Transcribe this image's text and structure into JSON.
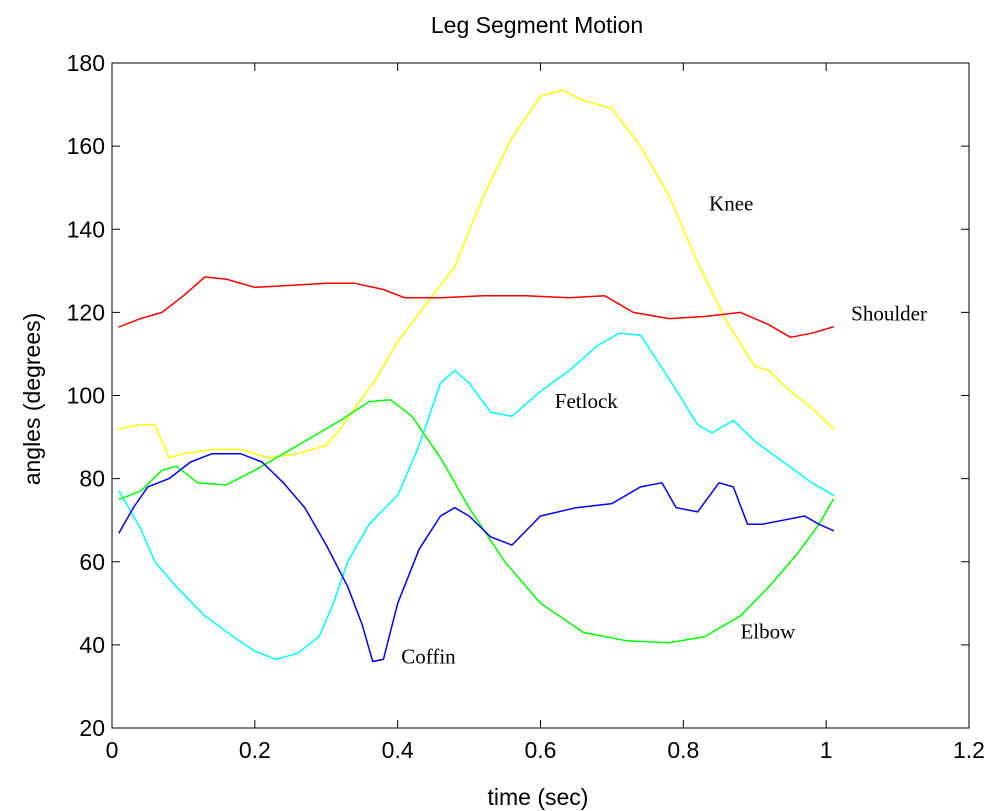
{
  "chart_data": {
    "type": "line",
    "title": "Leg Segment Motion",
    "xlabel": "time (sec)",
    "ylabel": "angles (degrees)",
    "xlim": [
      0,
      1.2
    ],
    "ylim": [
      20,
      180
    ],
    "xticks": [
      0,
      0.2,
      0.4,
      0.6,
      0.8,
      1,
      1.2
    ],
    "xtick_labels": [
      "0",
      "0.2",
      "0.4",
      "0.6",
      "0.8",
      "1",
      "1.2"
    ],
    "yticks": [
      20,
      40,
      60,
      80,
      100,
      120,
      140,
      160,
      180
    ],
    "ytick_labels": [
      "20",
      "40",
      "60",
      "80",
      "100",
      "120",
      "140",
      "160",
      "180"
    ],
    "grid": false,
    "legend": "none",
    "series": [
      {
        "name": "Knee",
        "color": "#ffff00",
        "x": [
          0.01,
          0.04,
          0.06,
          0.08,
          0.1,
          0.14,
          0.18,
          0.22,
          0.26,
          0.3,
          0.32,
          0.34,
          0.37,
          0.4,
          0.44,
          0.48,
          0.52,
          0.56,
          0.6,
          0.63,
          0.66,
          0.7,
          0.74,
          0.78,
          0.82,
          0.86,
          0.9,
          0.92,
          0.95,
          0.98,
          1.01
        ],
        "values": [
          92,
          93,
          93,
          85,
          86,
          87,
          87,
          85,
          86,
          88,
          92,
          97,
          104,
          113,
          122,
          131,
          148,
          162,
          172,
          173.5,
          171,
          169,
          160,
          148,
          132,
          118,
          107,
          106,
          101,
          97,
          92
        ]
      },
      {
        "name": "Shoulder",
        "color": "#ff0000",
        "x": [
          0.01,
          0.04,
          0.07,
          0.1,
          0.13,
          0.16,
          0.2,
          0.25,
          0.3,
          0.34,
          0.38,
          0.41,
          0.46,
          0.52,
          0.58,
          0.64,
          0.69,
          0.73,
          0.78,
          0.83,
          0.88,
          0.92,
          0.95,
          0.98,
          1.01
        ],
        "values": [
          116.5,
          118.5,
          120,
          124,
          128.5,
          128,
          126,
          126.5,
          127,
          127,
          125.5,
          123.5,
          123.5,
          124,
          124,
          123.5,
          124,
          120,
          118.5,
          119,
          120,
          117,
          114,
          115,
          116.5
        ]
      },
      {
        "name": "Fetlock",
        "color": "#00ffff",
        "x": [
          0.01,
          0.04,
          0.06,
          0.09,
          0.13,
          0.17,
          0.2,
          0.23,
          0.26,
          0.29,
          0.31,
          0.33,
          0.36,
          0.4,
          0.43,
          0.46,
          0.48,
          0.5,
          0.53,
          0.56,
          0.6,
          0.64,
          0.68,
          0.71,
          0.74,
          0.78,
          0.82,
          0.84,
          0.87,
          0.9,
          0.94,
          0.98,
          1.01
        ],
        "values": [
          77,
          68,
          60,
          54,
          47,
          42,
          38.5,
          36.5,
          38,
          42,
          50,
          60,
          69,
          76,
          88,
          103,
          106,
          103,
          96,
          95,
          101,
          106,
          112,
          115,
          114.5,
          104,
          93,
          91,
          94,
          89,
          84,
          79,
          76
        ]
      },
      {
        "name": "Elbow",
        "color": "#00ff00",
        "x": [
          0.01,
          0.04,
          0.07,
          0.09,
          0.12,
          0.16,
          0.2,
          0.24,
          0.28,
          0.32,
          0.36,
          0.39,
          0.42,
          0.46,
          0.5,
          0.55,
          0.6,
          0.66,
          0.72,
          0.78,
          0.83,
          0.88,
          0.92,
          0.96,
          0.99,
          1.01
        ],
        "values": [
          75,
          77,
          82,
          83,
          79,
          78.5,
          82,
          86,
          90,
          94,
          98.5,
          99,
          95,
          85,
          73,
          60,
          50,
          43,
          41,
          40.5,
          42,
          47,
          54,
          62,
          69,
          75
        ]
      },
      {
        "name": "Coffin",
        "color": "#0000ff",
        "x": [
          0.01,
          0.03,
          0.05,
          0.08,
          0.11,
          0.14,
          0.18,
          0.21,
          0.24,
          0.27,
          0.3,
          0.33,
          0.35,
          0.365,
          0.38,
          0.4,
          0.43,
          0.46,
          0.48,
          0.5,
          0.53,
          0.56,
          0.6,
          0.65,
          0.7,
          0.74,
          0.77,
          0.79,
          0.82,
          0.85,
          0.87,
          0.89,
          0.91,
          0.94,
          0.97,
          0.99,
          1.01
        ],
        "values": [
          67,
          73,
          78,
          80,
          84,
          86,
          86,
          84,
          79,
          73,
          64,
          54,
          45,
          36,
          36.5,
          50,
          63,
          71,
          73,
          71,
          66,
          64,
          71,
          73,
          74,
          78,
          79,
          73,
          72,
          79,
          78,
          69,
          69,
          70,
          71,
          69,
          67.5
        ]
      }
    ],
    "annotations": [
      {
        "text": "Knee",
        "x": 0.836,
        "y": 144.5
      },
      {
        "text": "Shoulder",
        "x": 1.035,
        "y": 118
      },
      {
        "text": "Fetlock",
        "x": 0.62,
        "y": 97
      },
      {
        "text": "Elbow",
        "x": 0.88,
        "y": 41.5
      },
      {
        "text": "Coffin",
        "x": 0.405,
        "y": 35.5
      }
    ]
  }
}
